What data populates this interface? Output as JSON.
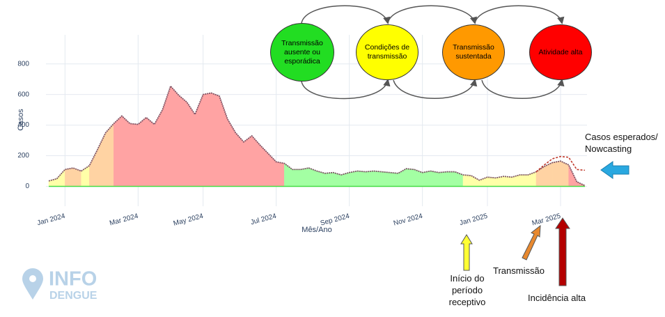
{
  "chart_data": {
    "type": "area",
    "ylabel": "Casos",
    "xlabel": "Mês/Ano",
    "categories": [
      null,
      null,
      "Jan 2024",
      null,
      null,
      null,
      null,
      null,
      null,
      null,
      null,
      "Mar 2024",
      null,
      null,
      null,
      null,
      null,
      null,
      null,
      "May 2024",
      null,
      null,
      null,
      null,
      null,
      null,
      null,
      null,
      "Jul 2024",
      null,
      null,
      null,
      null,
      null,
      null,
      null,
      null,
      "Sep 2024",
      null,
      null,
      null,
      null,
      null,
      null,
      null,
      null,
      "Nov 2024",
      null,
      null,
      null,
      null,
      null,
      null,
      null,
      "Jan 2025",
      null,
      null,
      null,
      null,
      null,
      null,
      null,
      null,
      "Mar 2025",
      null,
      null,
      null
    ],
    "series": [
      {
        "color": "#7d5566",
        "values": [
          35,
          50,
          110,
          120,
          100,
          135,
          240,
          350,
          410,
          460,
          410,
          405,
          450,
          405,
          500,
          655,
          595,
          550,
          470,
          600,
          610,
          590,
          440,
          350,
          290,
          330,
          270,
          215,
          160,
          150,
          110,
          110,
          120,
          100,
          85,
          90,
          75,
          90,
          100,
          95,
          100,
          95,
          90,
          85,
          115,
          110,
          90,
          100,
          90,
          95,
          95,
          75,
          70,
          40,
          60,
          55,
          65,
          60,
          75,
          75,
          95,
          130,
          155,
          165,
          140,
          30,
          5
        ],
        "point_colors": [
          "#ffffa8",
          "#ffffa8",
          "#ffd3a3",
          "#ffd3a3",
          "#ffffa8",
          "#ffd3a3",
          "#ffd3a3",
          "#ffd3a3",
          "#ffa3a3",
          "#ffa3a3",
          "#ffa3a3",
          "#ffa3a3",
          "#ffa3a3",
          "#ffa3a3",
          "#ffa3a3",
          "#ffa3a3",
          "#ffa3a3",
          "#ffa3a3",
          "#ffa3a3",
          "#ffa3a3",
          "#ffa3a3",
          "#ffa3a3",
          "#ffa3a3",
          "#ffa3a3",
          "#ffa3a3",
          "#ffa3a3",
          "#ffa3a3",
          "#ffa3a3",
          "#ffa3a3",
          "#a3ffa3",
          "#a3ffa3",
          "#a3ffa3",
          "#a3ffa3",
          "#a3ffa3",
          "#a3ffa3",
          "#a3ffa3",
          "#a3ffa3",
          "#a3ffa3",
          "#a3ffa3",
          "#a3ffa3",
          "#a3ffa3",
          "#a3ffa3",
          "#a3ffa3",
          "#a3ffa3",
          "#a3ffa3",
          "#a3ffa3",
          "#a3ffa3",
          "#a3ffa3",
          "#a3ffa3",
          "#a3ffa3",
          "#a3ffa3",
          "#ffffa8",
          "#ffffa8",
          "#ffffa8",
          "#ffffa8",
          "#ffffa8",
          "#ffffa8",
          "#ffffa8",
          "#ffffa8",
          "#ffffa8",
          "#ffd3a3",
          "#ffd3a3",
          "#ffd3a3",
          "#ffd3a3",
          "#ffa3a3",
          "#ffa3a3",
          "#a3ffa3"
        ]
      },
      {
        "name": "Casos esperados/ Nowcasting",
        "color": "#c0392b",
        "values": [
          null,
          null,
          null,
          null,
          null,
          null,
          null,
          null,
          null,
          null,
          null,
          null,
          null,
          null,
          null,
          null,
          null,
          null,
          null,
          null,
          null,
          null,
          null,
          null,
          null,
          null,
          null,
          null,
          null,
          null,
          null,
          null,
          null,
          null,
          null,
          null,
          null,
          null,
          null,
          null,
          null,
          null,
          null,
          null,
          null,
          null,
          null,
          null,
          null,
          null,
          null,
          null,
          null,
          null,
          null,
          null,
          null,
          null,
          null,
          null,
          95,
          140,
          180,
          195,
          190,
          110,
          105
        ]
      }
    ],
    "ylim": [
      -130,
      990
    ],
    "yticks": [
      0,
      200,
      400,
      600,
      800
    ],
    "grid": true
  },
  "diagram": {
    "nodes": [
      {
        "label": "Transmissão ausente ou esporádica",
        "color": "#22dd22"
      },
      {
        "label": "Condições de transmissão",
        "color": "#ffff00"
      },
      {
        "label": "Transmissão sustentada",
        "color": "#ff9900"
      },
      {
        "label": "Atividade alta",
        "color": "#ff0000"
      }
    ]
  },
  "annotations": [
    {
      "text": "Início do período receptivo",
      "arrow_color": "#ffff33"
    },
    {
      "text": "Transmissão",
      "arrow_color": "#e8892f"
    },
    {
      "text": "Incidência alta",
      "arrow_color": "#b40000"
    }
  ],
  "logo": {
    "line1": "INFO",
    "line2": "DENGUE"
  }
}
